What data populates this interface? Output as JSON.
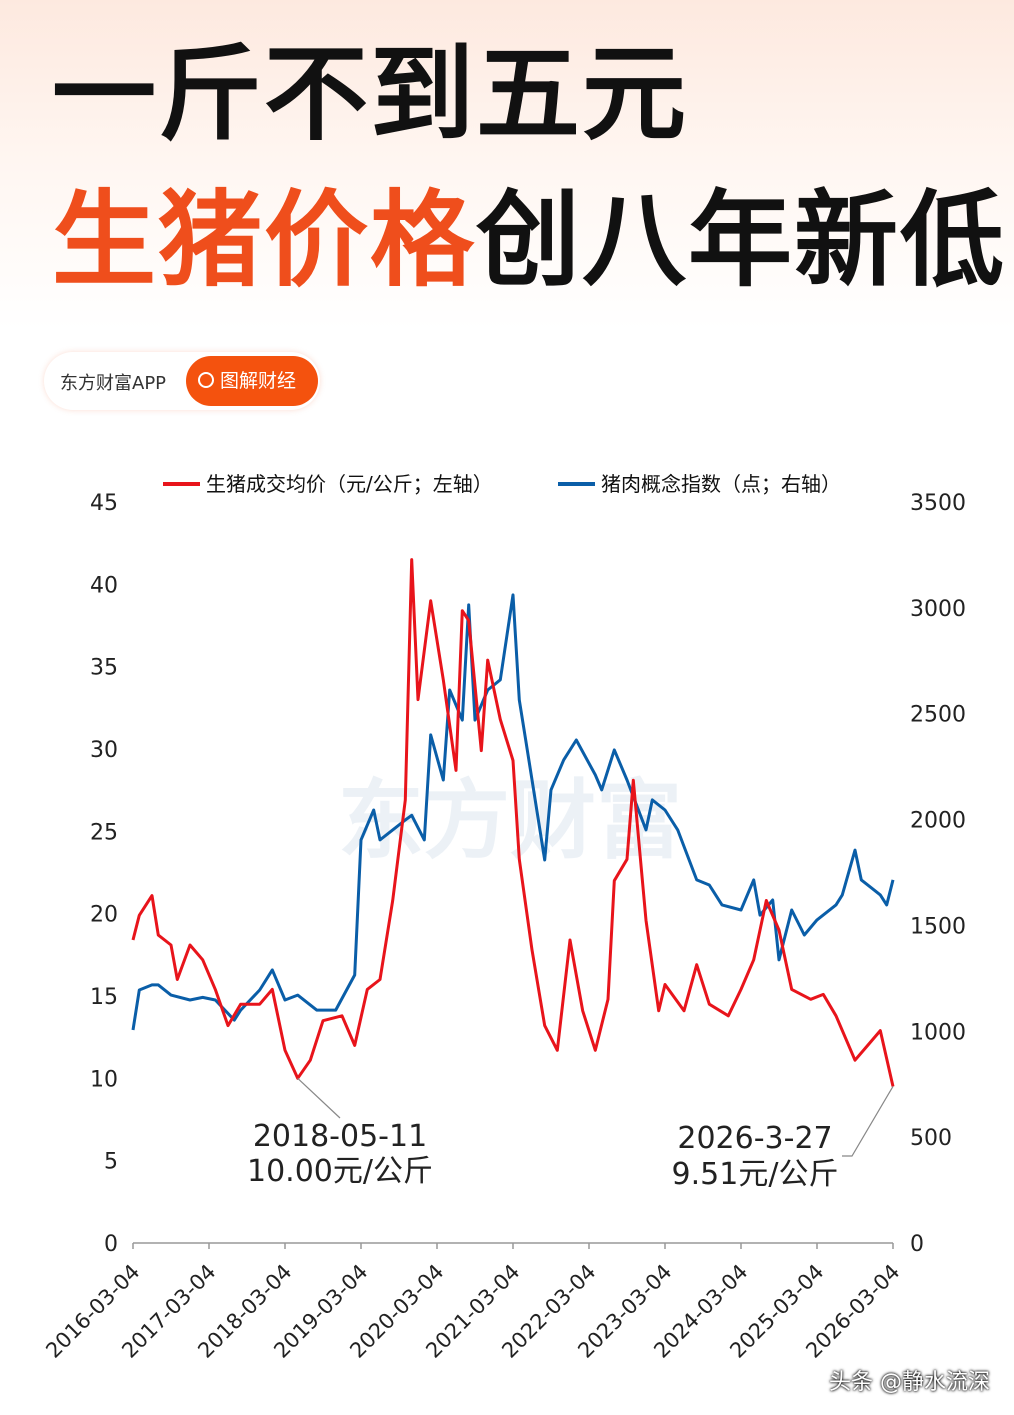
{
  "headline": {
    "line1": "一斤不到五元",
    "line2_highlight": "生猪价格",
    "line2_rest": "创八年新低"
  },
  "badge": {
    "app": "东方财富APP",
    "button": "图解财经",
    "button_icon": "search-icon"
  },
  "watermark": "东方财富",
  "footer": "头条 @静水流深",
  "colors": {
    "highlight": "#ef4e1c",
    "red_series": "#e8141b",
    "blue_series": "#0a5ea8",
    "badge": "#f4520e"
  },
  "chart_data": {
    "type": "line",
    "legend_position": "top",
    "grid": false,
    "x_ticks": [
      "2016-03-04",
      "2017-03-04",
      "2018-03-04",
      "2019-03-04",
      "2020-03-04",
      "2021-03-04",
      "2022-03-04",
      "2023-03-04",
      "2024-03-04",
      "2025-03-04",
      "2026-03-04"
    ],
    "y_left": {
      "range": [
        0,
        45
      ],
      "ticks": [
        "0",
        "5",
        "10",
        "15",
        "20",
        "25",
        "30",
        "35",
        "40",
        "45"
      ]
    },
    "y_right": {
      "range": [
        0,
        3500
      ],
      "ticks": [
        "0",
        "500",
        "1000",
        "1500",
        "2000",
        "2500",
        "3000",
        "3500"
      ]
    },
    "series": [
      {
        "name": "生猪成交均价（元/公斤；左轴）",
        "axis": "left",
        "color": "#e8141b",
        "points": [
          [
            "2016-03",
            18.4
          ],
          [
            "2016-04",
            19.9
          ],
          [
            "2016-06",
            21.1
          ],
          [
            "2016-07",
            18.7
          ],
          [
            "2016-09",
            18.1
          ],
          [
            "2016-10",
            16.0
          ],
          [
            "2016-12",
            18.1
          ],
          [
            "2017-02",
            17.2
          ],
          [
            "2017-04",
            15.4
          ],
          [
            "2017-06",
            13.2
          ],
          [
            "2017-08",
            14.5
          ],
          [
            "2017-11",
            14.5
          ],
          [
            "2018-01",
            15.4
          ],
          [
            "2018-03",
            11.7
          ],
          [
            "2018-05",
            10.0
          ],
          [
            "2018-07",
            11.1
          ],
          [
            "2018-09",
            13.5
          ],
          [
            "2018-12",
            13.8
          ],
          [
            "2019-02",
            12.0
          ],
          [
            "2019-04",
            15.4
          ],
          [
            "2019-06",
            16.0
          ],
          [
            "2019-08",
            20.8
          ],
          [
            "2019-10",
            26.9
          ],
          [
            "2019-11",
            41.5
          ],
          [
            "2019-12",
            33.0
          ],
          [
            "2020-02",
            39.0
          ],
          [
            "2020-04",
            34.2
          ],
          [
            "2020-06",
            28.7
          ],
          [
            "2020-07",
            38.4
          ],
          [
            "2020-08",
            37.8
          ],
          [
            "2020-10",
            29.9
          ],
          [
            "2020-11",
            35.4
          ],
          [
            "2021-01",
            31.8
          ],
          [
            "2021-03",
            29.3
          ],
          [
            "2021-04",
            23.3
          ],
          [
            "2021-06",
            17.8
          ],
          [
            "2021-08",
            13.2
          ],
          [
            "2021-10",
            11.7
          ],
          [
            "2021-12",
            18.4
          ],
          [
            "2022-02",
            14.1
          ],
          [
            "2022-04",
            11.7
          ],
          [
            "2022-06",
            14.8
          ],
          [
            "2022-07",
            22.0
          ],
          [
            "2022-09",
            23.3
          ],
          [
            "2022-10",
            28.1
          ],
          [
            "2022-12",
            19.6
          ],
          [
            "2023-02",
            14.1
          ],
          [
            "2023-03",
            15.7
          ],
          [
            "2023-06",
            14.1
          ],
          [
            "2023-08",
            16.9
          ],
          [
            "2023-10",
            14.5
          ],
          [
            "2024-01",
            13.8
          ],
          [
            "2024-03",
            15.4
          ],
          [
            "2024-05",
            17.2
          ],
          [
            "2024-07",
            20.8
          ],
          [
            "2024-09",
            19.0
          ],
          [
            "2024-11",
            15.4
          ],
          [
            "2025-02",
            14.8
          ],
          [
            "2025-04",
            15.1
          ],
          [
            "2025-06",
            13.8
          ],
          [
            "2025-09",
            11.1
          ],
          [
            "2025-11",
            12.0
          ],
          [
            "2026-01",
            12.9
          ],
          [
            "2026-03",
            9.51
          ]
        ]
      },
      {
        "name": "猪肉概念指数（点；右轴）",
        "axis": "right",
        "color": "#0a5ea8",
        "points": [
          [
            "2016-03",
            1006
          ],
          [
            "2016-04",
            1195
          ],
          [
            "2016-06",
            1219
          ],
          [
            "2016-07",
            1219
          ],
          [
            "2016-09",
            1171
          ],
          [
            "2016-12",
            1148
          ],
          [
            "2017-02",
            1160
          ],
          [
            "2017-04",
            1148
          ],
          [
            "2017-07",
            1053
          ],
          [
            "2017-08",
            1100
          ],
          [
            "2017-11",
            1195
          ],
          [
            "2018-01",
            1290
          ],
          [
            "2018-03",
            1148
          ],
          [
            "2018-05",
            1171
          ],
          [
            "2018-08",
            1100
          ],
          [
            "2018-11",
            1100
          ],
          [
            "2019-02",
            1266
          ],
          [
            "2019-03",
            1904
          ],
          [
            "2019-05",
            2045
          ],
          [
            "2019-06",
            1904
          ],
          [
            "2019-08",
            1951
          ],
          [
            "2019-10",
            1998
          ],
          [
            "2019-11",
            2020
          ],
          [
            "2020-01",
            1904
          ],
          [
            "2020-02",
            2400
          ],
          [
            "2020-04",
            2187
          ],
          [
            "2020-05",
            2612
          ],
          [
            "2020-07",
            2470
          ],
          [
            "2020-08",
            3014
          ],
          [
            "2020-09",
            2470
          ],
          [
            "2020-11",
            2612
          ],
          [
            "2021-01",
            2660
          ],
          [
            "2021-03",
            3061
          ],
          [
            "2021-04",
            2565
          ],
          [
            "2021-05",
            2376
          ],
          [
            "2021-08",
            1809
          ],
          [
            "2021-09",
            2140
          ],
          [
            "2021-11",
            2282
          ],
          [
            "2022-01",
            2376
          ],
          [
            "2022-04",
            2211
          ],
          [
            "2022-05",
            2140
          ],
          [
            "2022-07",
            2329
          ],
          [
            "2022-09",
            2187
          ],
          [
            "2022-12",
            1951
          ],
          [
            "2023-01",
            2093
          ],
          [
            "2023-03",
            2045
          ],
          [
            "2023-05",
            1951
          ],
          [
            "2023-08",
            1715
          ],
          [
            "2023-10",
            1691
          ],
          [
            "2023-12",
            1597
          ],
          [
            "2024-03",
            1573
          ],
          [
            "2024-05",
            1715
          ],
          [
            "2024-06",
            1549
          ],
          [
            "2024-08",
            1620
          ],
          [
            "2024-09",
            1337
          ],
          [
            "2024-11",
            1573
          ],
          [
            "2025-01",
            1455
          ],
          [
            "2025-03",
            1526
          ],
          [
            "2025-06",
            1597
          ],
          [
            "2025-07",
            1644
          ],
          [
            "2025-09",
            1856
          ],
          [
            "2025-10",
            1715
          ],
          [
            "2026-01",
            1644
          ],
          [
            "2026-02",
            1597
          ],
          [
            "2026-03",
            1715
          ]
        ]
      }
    ],
    "annotations": [
      {
        "date": "2018-05-11",
        "text": "10.00元/公斤",
        "at": [
          "2018-05",
          10.0
        ]
      },
      {
        "date": "2026-3-27",
        "text": "9.51元/公斤",
        "at": [
          "2026-03",
          9.51
        ]
      }
    ]
  }
}
